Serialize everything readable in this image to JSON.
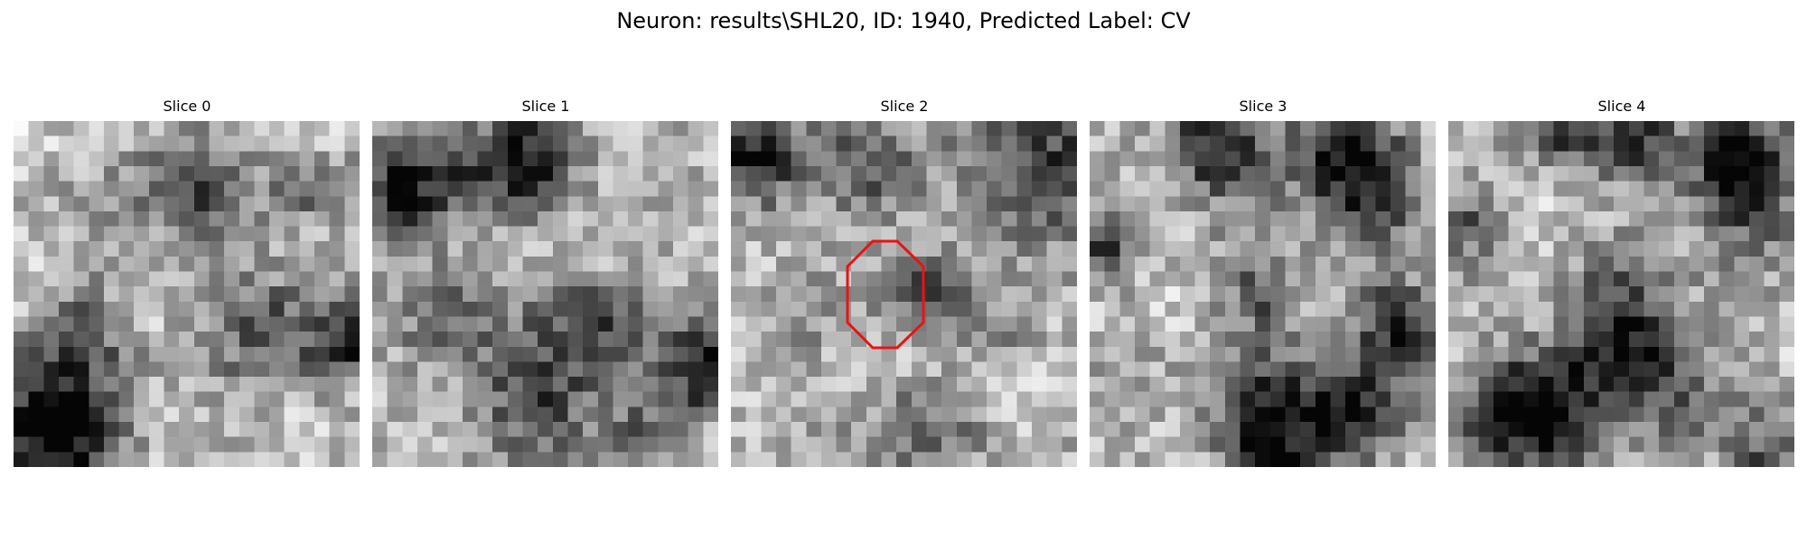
{
  "figure": {
    "title": "Neuron: results\\SHL20, ID: 1940, Predicted Label: CV"
  },
  "panels": [
    {
      "title": "Slice 0",
      "seed": 11,
      "roi": false
    },
    {
      "title": "Slice 1",
      "seed": 23,
      "roi": false
    },
    {
      "title": "Slice 2",
      "seed": 37,
      "roi": true
    },
    {
      "title": "Slice 3",
      "seed": 41,
      "roi": false
    },
    {
      "title": "Slice 4",
      "seed": 59,
      "roi": false
    }
  ],
  "image": {
    "grid_size": 23,
    "colormap": "gray"
  },
  "roi": {
    "shape": "octagon",
    "stroke_color": "#e81414"
  }
}
